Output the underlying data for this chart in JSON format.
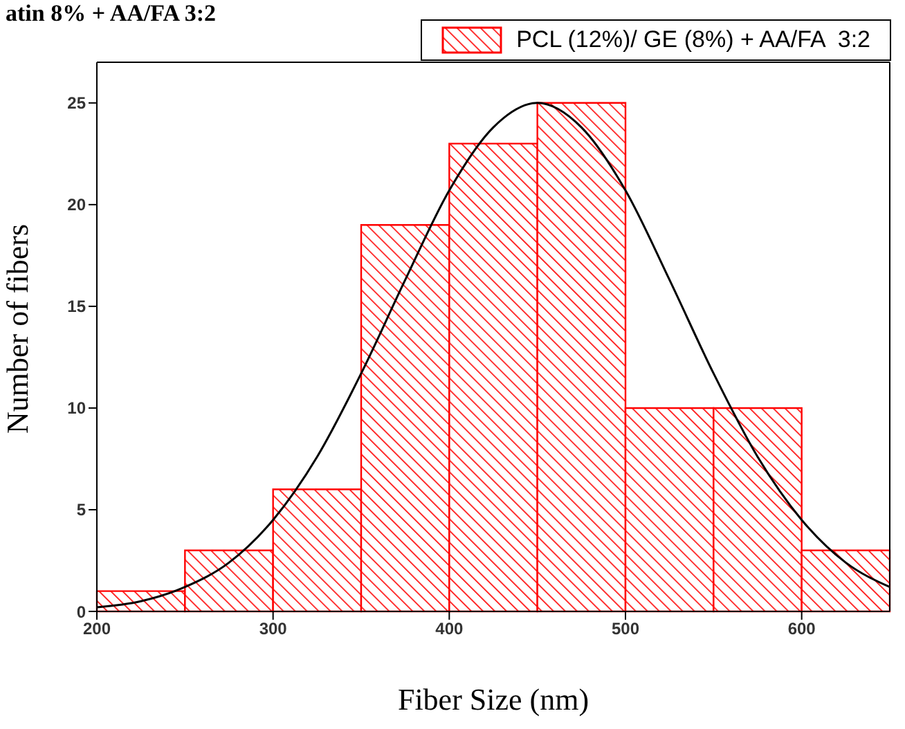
{
  "chart_data": {
    "type": "histogram",
    "title": "atin 8% + AA/FA 3:2",
    "xlabel": "Fiber Size (nm)",
    "ylabel": "Number of fibers",
    "bins": [
      200,
      250,
      300,
      350,
      400,
      450,
      500,
      550,
      600,
      650
    ],
    "series": [
      {
        "name": "PCL (12%)/ GE (8%) + AA/FA  3:2",
        "color": "#ff0000",
        "values": [
          1,
          3,
          6,
          19,
          23,
          25,
          10,
          10,
          3
        ]
      },
      {
        "type": "line",
        "color": "#000000",
        "x": [
          200,
          225,
          250,
          275,
          300,
          325,
          350,
          375,
          400,
          425,
          450,
          475,
          500,
          525,
          550,
          575,
          600,
          625,
          650
        ],
        "values": [
          0.2,
          0.5,
          1.2,
          2.4,
          4.5,
          7.6,
          11.7,
          16.3,
          20.7,
          23.8,
          25,
          23.8,
          20.7,
          16.3,
          11.7,
          7.6,
          4.5,
          2.4,
          1.2
        ]
      }
    ],
    "xlim": [
      200,
      650
    ],
    "xticks": [
      200,
      300,
      400,
      500,
      600
    ],
    "ylim": [
      0,
      27
    ],
    "yticks": [
      0,
      5,
      10,
      15,
      20,
      25
    ],
    "legend": "top right"
  }
}
